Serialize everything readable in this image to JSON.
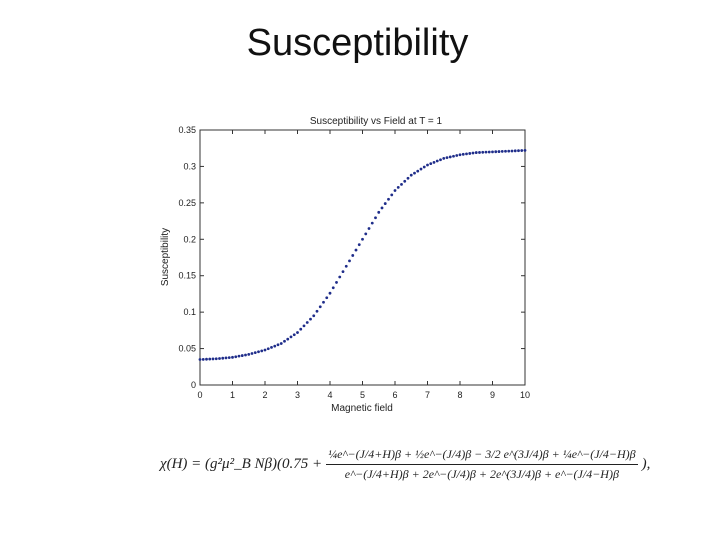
{
  "slide": {
    "title": "Susceptibility"
  },
  "chart_data": {
    "type": "scatter",
    "title": "Susceptibility vs Field at T = 1",
    "xlabel": "Magnetic field",
    "ylabel": "Susceptibility",
    "xlim": [
      0,
      10
    ],
    "ylim": [
      0,
      0.35
    ],
    "x_ticks": [
      "0",
      "1",
      "2",
      "3",
      "4",
      "5",
      "6",
      "7",
      "8",
      "9",
      "10"
    ],
    "y_ticks": [
      "0",
      "0.05",
      "0.1",
      "0.15",
      "0.2",
      "0.25",
      "0.3",
      "0.35"
    ],
    "grid": false,
    "marker_color": "#1f2d8a",
    "x": [
      0,
      0.5,
      1,
      1.5,
      2,
      2.5,
      3,
      3.5,
      4,
      4.5,
      5,
      5.5,
      6,
      6.5,
      7,
      7.5,
      8,
      8.5,
      9,
      9.5,
      10
    ],
    "y": [
      0.035,
      0.036,
      0.038,
      0.042,
      0.048,
      0.057,
      0.072,
      0.095,
      0.126,
      0.163,
      0.2,
      0.237,
      0.267,
      0.288,
      0.302,
      0.311,
      0.316,
      0.319,
      0.32,
      0.321,
      0.322
    ]
  },
  "equation": {
    "prefix": "χ(H) = (g²μ²_B Nβ)(0.75 +",
    "numerator": "¼e^−(J/4+H)β + ½e^−(J/4)β − 3/2 e^(3J/4)β + ¼e^−(J/4−H)β",
    "denominator": "e^−(J/4+H)β + 2e^−(J/4)β + 2e^(3J/4)β + e^−(J/4−H)β",
    "suffix": "),"
  }
}
